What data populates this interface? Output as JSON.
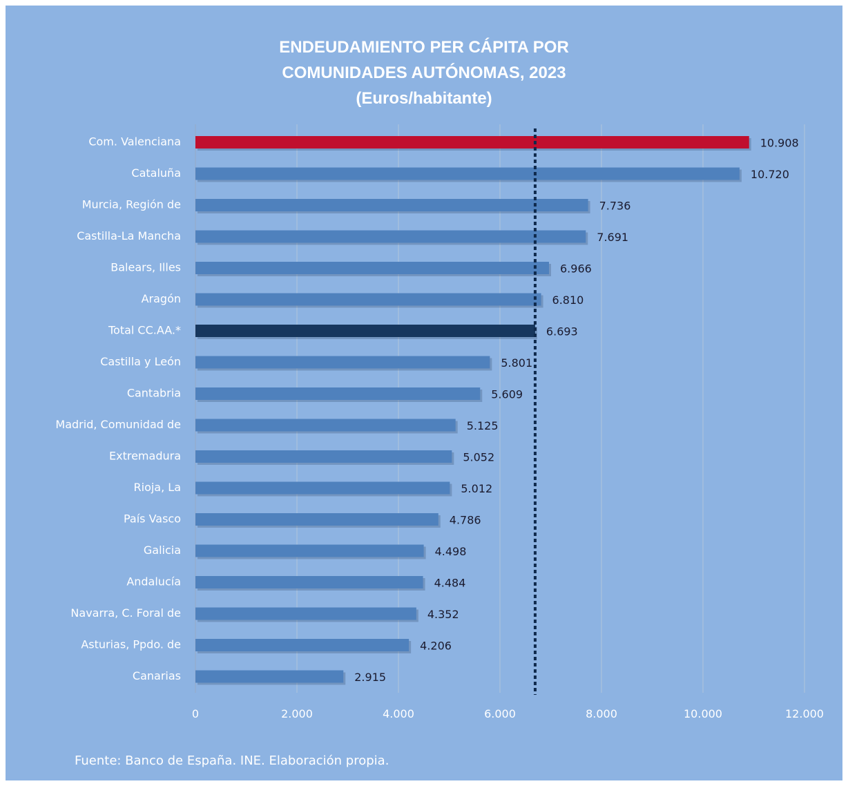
{
  "chart_data": {
    "type": "bar",
    "orientation": "horizontal",
    "title": [
      "ENDEUDAMIENTO PER CÁPITA POR",
      "COMUNIDADES AUTÓNOMAS, 2023",
      "(Euros/habitante)"
    ],
    "categories": [
      "Com. Valenciana",
      "Cataluña",
      "Murcia, Región de",
      "Castilla-La Mancha",
      "Balears, Illes",
      "Aragón",
      "Total CC.AA.*",
      "Castilla y León",
      "Cantabria",
      "Madrid, Comunidad de",
      "Extremadura",
      "Rioja, La",
      "País Vasco",
      "Galicia",
      "Andalucía",
      "Navarra, C. Foral de",
      "Asturias, Ppdo. de",
      "Canarias"
    ],
    "values": [
      10908,
      10720,
      7736,
      7691,
      6966,
      6810,
      6693,
      5801,
      5609,
      5125,
      5052,
      5012,
      4786,
      4498,
      4484,
      4352,
      4206,
      2915
    ],
    "value_labels": [
      "10.908",
      "10.720",
      "7.736",
      "7.691",
      "6.966",
      "6.810",
      "6.693",
      "5.801",
      "5.609",
      "5.125",
      "5.052",
      "5.012",
      "4.786",
      "4.498",
      "4.484",
      "4.352",
      "4.206",
      "2.915"
    ],
    "xlim": [
      0,
      12000
    ],
    "x_ticks": [
      0,
      2000,
      4000,
      6000,
      8000,
      10000,
      12000
    ],
    "x_tick_labels": [
      "0",
      "2.000",
      "4.000",
      "6.000",
      "8.000",
      "10.000",
      "12.000"
    ],
    "reference_line": {
      "value": 6693,
      "style": "dotted"
    },
    "grid": true,
    "legend": "none",
    "colors": {
      "background": "#8db3e2",
      "bar_default": "#4f81bd",
      "bar_highlight": "#c00f2e",
      "bar_total": "#17375e",
      "gridline": "#a5bfdd",
      "reference_line": "#0f2a4d",
      "text_light": "#ffffff",
      "text_dark": "#1a1a2e"
    },
    "highlight_categories": {
      "Com. Valenciana": "bar_highlight",
      "Total CC.AA.*": "bar_total"
    },
    "source_note": "Fuente: Banco de España. INE. Elaboración propia."
  }
}
